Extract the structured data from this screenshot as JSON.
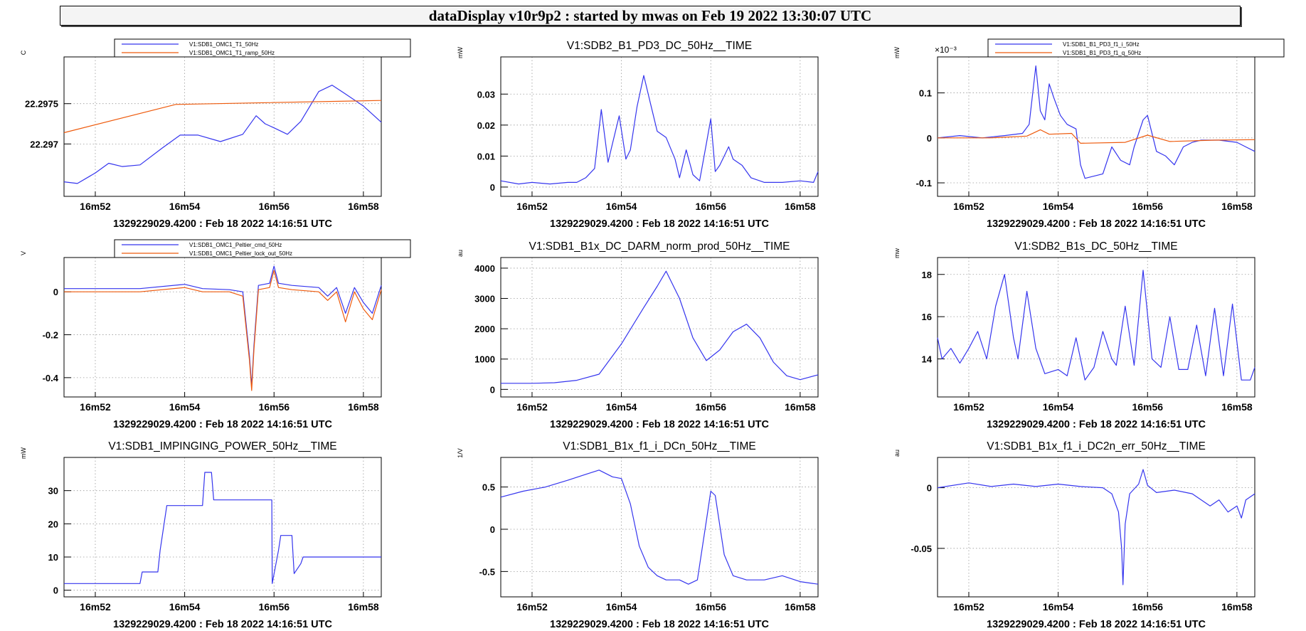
{
  "header": {
    "title": "dataDisplay v10r9p2 : started by mwas on Feb 19 2022 13:30:07 UTC"
  },
  "colors": {
    "blue": "#3535ee",
    "orange": "#ee5a0c",
    "grid": "#9a9a9a"
  },
  "x_axis": {
    "unit": "minutes",
    "tick_labels": [
      "16m52",
      "16m54",
      "16m56",
      "16m58"
    ],
    "tick_values": [
      52,
      54,
      56,
      58
    ],
    "range": [
      51.3,
      58.4
    ]
  },
  "chart_data": [
    {
      "type": "line",
      "title": "",
      "ylabel": "C",
      "time_label": "1329229029.4200 : Feb 18 2022 14:16:51 UTC",
      "ylim": [
        22.29635,
        22.29808
      ],
      "yticks": [
        {
          "v": 22.2975,
          "label": "22.2975"
        },
        {
          "v": 22.297,
          "label": "22.297"
        }
      ],
      "legend": [
        "V1:SDB1_OMC1_T1_50Hz",
        "V1:SDB1_OMC1_T1_ramp_50Hz"
      ],
      "series": [
        {
          "name": "V1:SDB1_OMC1_T1_50Hz",
          "color": "blue",
          "x": [
            51.3,
            51.6,
            52.0,
            52.3,
            52.6,
            53.0,
            53.5,
            53.9,
            54.3,
            54.8,
            55.3,
            55.6,
            55.8,
            56.0,
            56.3,
            56.6,
            57.0,
            57.3,
            57.6,
            58.0,
            58.4
          ],
          "y": [
            22.29653,
            22.29651,
            22.29664,
            22.29676,
            22.29672,
            22.29674,
            22.29695,
            22.29711,
            22.29711,
            22.29703,
            22.29712,
            22.29735,
            22.29725,
            22.2972,
            22.29712,
            22.29728,
            22.29765,
            22.29773,
            22.29762,
            22.29747,
            22.29727
          ]
        },
        {
          "name": "V1:SDB1_OMC1_T1_ramp_50Hz",
          "color": "orange",
          "x": [
            51.3,
            53.8,
            58.4
          ],
          "y": [
            22.29714,
            22.29749,
            22.29754
          ]
        }
      ]
    },
    {
      "type": "line",
      "title": "V1:SDB2_B1_PD3_DC_50Hz__TIME",
      "ylabel": "mW",
      "time_label": "1329229029.4200 : Feb 18 2022 14:16:51 UTC",
      "ylim": [
        -0.003,
        0.042
      ],
      "yticks": [
        {
          "v": 0,
          "label": "0"
        },
        {
          "v": 0.01,
          "label": "0.01"
        },
        {
          "v": 0.02,
          "label": "0.02"
        },
        {
          "v": 0.03,
          "label": "0.03"
        }
      ],
      "series": [
        {
          "name": "",
          "color": "blue",
          "x": [
            51.3,
            51.7,
            52.0,
            52.4,
            52.8,
            53.0,
            53.2,
            53.4,
            53.55,
            53.7,
            53.8,
            53.95,
            54.1,
            54.2,
            54.35,
            54.5,
            54.65,
            54.8,
            55.0,
            55.2,
            55.3,
            55.45,
            55.6,
            55.75,
            55.9,
            56.0,
            56.1,
            56.2,
            56.4,
            56.5,
            56.7,
            56.9,
            57.2,
            57.6,
            58.0,
            58.3,
            58.4
          ],
          "y": [
            0.002,
            0.001,
            0.0015,
            0.001,
            0.0015,
            0.0015,
            0.003,
            0.006,
            0.025,
            0.008,
            0.014,
            0.023,
            0.009,
            0.012,
            0.026,
            0.036,
            0.027,
            0.018,
            0.016,
            0.009,
            0.003,
            0.012,
            0.004,
            0.002,
            0.014,
            0.022,
            0.005,
            0.007,
            0.013,
            0.009,
            0.007,
            0.003,
            0.0015,
            0.0015,
            0.002,
            0.0015,
            0.005
          ]
        }
      ]
    },
    {
      "type": "line",
      "title": "",
      "ylabel": "mW",
      "yexp": "×10⁻³",
      "time_label": "1329229029.4200 : Feb 18 2022 14:16:51 UTC",
      "ylim": [
        -0.13,
        0.18
      ],
      "yticks": [
        {
          "v": -0.1,
          "label": "-0.1"
        },
        {
          "v": 0,
          "label": "0"
        },
        {
          "v": 0.1,
          "label": "0.1"
        }
      ],
      "legend": [
        "V1:SDB1_B1_PD3_f1_i_50Hz",
        "V1:SDB1_B1_PD3_f1_q_50Hz"
      ],
      "series": [
        {
          "name": "V1:SDB1_B1_PD3_f1_i_50Hz",
          "color": "blue",
          "x": [
            51.3,
            51.8,
            52.3,
            52.8,
            53.2,
            53.35,
            53.5,
            53.6,
            53.7,
            53.8,
            53.9,
            54.05,
            54.2,
            54.4,
            54.5,
            54.6,
            55.0,
            55.2,
            55.4,
            55.6,
            55.7,
            55.9,
            56.0,
            56.2,
            56.4,
            56.6,
            56.8,
            57.0,
            57.2,
            57.6,
            58.0,
            58.2,
            58.4
          ],
          "y": [
            0,
            0.005,
            0,
            0.005,
            0.01,
            0.03,
            0.16,
            0.06,
            0.04,
            0.12,
            0.09,
            0.05,
            0.03,
            0.02,
            -0.06,
            -0.09,
            -0.08,
            -0.02,
            -0.05,
            -0.06,
            -0.02,
            0.04,
            0.05,
            -0.03,
            -0.04,
            -0.06,
            -0.02,
            -0.01,
            -0.005,
            -0.005,
            -0.01,
            -0.02,
            -0.03
          ]
        },
        {
          "name": "V1:SDB1_B1_PD3_f1_q_50Hz",
          "color": "orange",
          "x": [
            51.3,
            52.5,
            53.3,
            53.6,
            53.8,
            54.3,
            54.5,
            55.5,
            56.0,
            56.5,
            57.5,
            58.4
          ],
          "y": [
            0,
            0,
            0.004,
            0.018,
            0.008,
            0.01,
            -0.012,
            -0.01,
            0.006,
            -0.008,
            -0.005,
            -0.004
          ]
        }
      ]
    },
    {
      "type": "line",
      "title": "",
      "ylabel": "V",
      "time_label": "1329229029.4200 : Feb 18 2022 14:16:51 UTC",
      "ylim": [
        -0.49,
        0.16
      ],
      "yticks": [
        {
          "v": -0.4,
          "label": "-0.4"
        },
        {
          "v": -0.2,
          "label": "-0.2"
        },
        {
          "v": 0,
          "label": "0"
        }
      ],
      "legend": [
        "V1:SDB1_OMC1_Peltier_cmd_50Hz",
        "V1:SDB1_OMC1_Peltier_lock_out_50Hz"
      ],
      "series": [
        {
          "name": "V1:SDB1_OMC1_Peltier_cmd_50Hz",
          "color": "blue",
          "x": [
            51.3,
            53.0,
            54.0,
            54.4,
            55.0,
            55.3,
            55.45,
            55.5,
            55.55,
            55.65,
            55.9,
            56.0,
            56.1,
            56.4,
            57.0,
            57.2,
            57.4,
            57.6,
            57.8,
            58.0,
            58.2,
            58.4
          ],
          "y": [
            0.015,
            0.015,
            0.035,
            0.015,
            0.01,
            0,
            -0.3,
            -0.44,
            -0.25,
            0.03,
            0.04,
            0.12,
            0.04,
            0.03,
            0.02,
            -0.02,
            0.02,
            -0.1,
            0.02,
            -0.05,
            -0.1,
            0.03
          ]
        },
        {
          "name": "V1:SDB1_OMC1_Peltier_lock_out_50Hz",
          "color": "orange",
          "x": [
            51.3,
            53.0,
            54.0,
            54.4,
            55.0,
            55.3,
            55.45,
            55.5,
            55.55,
            55.65,
            55.9,
            56.0,
            56.1,
            56.4,
            57.0,
            57.2,
            57.4,
            57.6,
            57.8,
            58.0,
            58.2,
            58.4
          ],
          "y": [
            0,
            0,
            0.02,
            0,
            0,
            -0.02,
            -0.32,
            -0.46,
            -0.27,
            0.01,
            0.02,
            0.1,
            0.02,
            0.01,
            0,
            -0.04,
            0,
            -0.14,
            0,
            -0.08,
            -0.13,
            0.01
          ]
        }
      ]
    },
    {
      "type": "line",
      "title": "V1:SDB1_B1x_DC_DARM_norm_prod_50Hz__TIME",
      "ylabel": "au",
      "time_label": "1329229029.4200 : Feb 18 2022 14:16:51 UTC",
      "ylim": [
        -250,
        4350
      ],
      "yticks": [
        {
          "v": 0,
          "label": "0"
        },
        {
          "v": 1000,
          "label": "1000"
        },
        {
          "v": 2000,
          "label": "2000"
        },
        {
          "v": 3000,
          "label": "3000"
        },
        {
          "v": 4000,
          "label": "4000"
        }
      ],
      "series": [
        {
          "name": "",
          "color": "blue",
          "x": [
            51.3,
            52.0,
            52.5,
            53.0,
            53.5,
            54.0,
            54.5,
            54.8,
            55.0,
            55.3,
            55.6,
            55.9,
            56.2,
            56.5,
            56.8,
            57.1,
            57.4,
            57.7,
            58.0,
            58.4
          ],
          "y": [
            200,
            200,
            220,
            300,
            500,
            1500,
            2700,
            3400,
            3900,
            3000,
            1700,
            950,
            1300,
            1900,
            2150,
            1700,
            900,
            450,
            320,
            480
          ]
        }
      ]
    },
    {
      "type": "line",
      "title": "V1:SDB2_B1s_DC_50Hz__TIME",
      "ylabel": "mw",
      "time_label": "1329229029.4200 : Feb 18 2022 14:16:51 UTC",
      "ylim": [
        12.2,
        18.8
      ],
      "yticks": [
        {
          "v": 14,
          "label": "14"
        },
        {
          "v": 16,
          "label": "16"
        },
        {
          "v": 18,
          "label": "18"
        }
      ],
      "series": [
        {
          "name": "",
          "color": "blue",
          "x": [
            51.3,
            51.4,
            51.6,
            51.8,
            52.0,
            52.2,
            52.4,
            52.6,
            52.8,
            53.0,
            53.1,
            53.3,
            53.5,
            53.7,
            54.0,
            54.2,
            54.4,
            54.6,
            54.8,
            55.0,
            55.2,
            55.3,
            55.5,
            55.7,
            55.9,
            56.1,
            56.3,
            56.5,
            56.7,
            56.9,
            57.1,
            57.3,
            57.5,
            57.7,
            57.9,
            58.1,
            58.3,
            58.4
          ],
          "y": [
            15,
            14,
            14.5,
            13.8,
            14.5,
            15.3,
            14,
            16.5,
            18,
            15,
            14,
            17.2,
            14.5,
            13.3,
            13.5,
            13.2,
            15,
            13,
            13.6,
            15.3,
            14,
            13.7,
            16.5,
            13.7,
            18.2,
            14,
            13.6,
            16,
            13.5,
            13.5,
            15.6,
            13.2,
            16.4,
            13.2,
            16.6,
            13,
            13,
            13.6
          ]
        }
      ]
    },
    {
      "type": "line",
      "title": "V1:SDB1_IMPINGING_POWER_50Hz__TIME",
      "ylabel": "mW",
      "time_label": "1329229029.4200 : Feb 18 2022 14:16:51 UTC",
      "ylim": [
        -2,
        40
      ],
      "yticks": [
        {
          "v": 0,
          "label": "0"
        },
        {
          "v": 10,
          "label": "10"
        },
        {
          "v": 20,
          "label": "20"
        },
        {
          "v": 30,
          "label": "30"
        }
      ],
      "series": [
        {
          "name": "",
          "color": "blue",
          "x": [
            51.3,
            53.0,
            53.05,
            53.4,
            53.45,
            53.6,
            53.65,
            54.4,
            54.45,
            54.6,
            54.65,
            55.95,
            55.96,
            56.1,
            56.15,
            56.4,
            56.45,
            56.6,
            56.65,
            58.4
          ],
          "y": [
            2,
            2,
            5.5,
            5.5,
            12,
            25.5,
            25.5,
            25.5,
            35.5,
            35.5,
            27.2,
            27.2,
            2,
            12,
            16.5,
            16.5,
            5,
            8,
            10,
            10
          ]
        }
      ]
    },
    {
      "type": "line",
      "title": "V1:SDB1_B1x_f1_i_DCn_50Hz__TIME",
      "ylabel": "1/V",
      "time_label": "1329229029.4200 : Feb 18 2022 14:16:51 UTC",
      "ylim": [
        -0.8,
        0.85
      ],
      "yticks": [
        {
          "v": -0.5,
          "label": "-0.5"
        },
        {
          "v": 0,
          "label": "0"
        },
        {
          "v": 0.5,
          "label": "0.5"
        }
      ],
      "series": [
        {
          "name": "",
          "color": "blue",
          "x": [
            51.3,
            51.8,
            52.3,
            52.8,
            53.2,
            53.5,
            53.8,
            54.0,
            54.2,
            54.4,
            54.6,
            54.8,
            55.0,
            55.3,
            55.5,
            55.7,
            55.9,
            56.0,
            56.1,
            56.3,
            56.5,
            56.8,
            57.2,
            57.6,
            58.0,
            58.4
          ],
          "y": [
            0.38,
            0.45,
            0.5,
            0.58,
            0.65,
            0.7,
            0.62,
            0.6,
            0.3,
            -0.2,
            -0.45,
            -0.55,
            -0.6,
            -0.6,
            -0.65,
            -0.6,
            0.1,
            0.45,
            0.4,
            -0.3,
            -0.55,
            -0.6,
            -0.6,
            -0.55,
            -0.62,
            -0.65
          ]
        }
      ]
    },
    {
      "type": "line",
      "title": "V1:SDB1_B1x_f1_i_DC2n_err_50Hz__TIME",
      "ylabel": "au",
      "time_label": "1329229029.4200 : Feb 18 2022 14:16:51 UTC",
      "ylim": [
        -0.09,
        0.025
      ],
      "yticks": [
        {
          "v": -0.05,
          "label": "-0.05"
        },
        {
          "v": 0,
          "label": "0"
        }
      ],
      "series": [
        {
          "name": "",
          "color": "blue",
          "x": [
            51.3,
            52.0,
            52.5,
            53.0,
            53.5,
            54.0,
            54.5,
            55.0,
            55.2,
            55.35,
            55.42,
            55.45,
            55.5,
            55.6,
            55.8,
            55.9,
            56.0,
            56.2,
            56.6,
            57.0,
            57.4,
            57.6,
            57.8,
            58.0,
            58.1,
            58.2,
            58.4
          ],
          "y": [
            0,
            0.004,
            0.001,
            0.003,
            0.001,
            0.003,
            0.001,
            0,
            -0.005,
            -0.02,
            -0.05,
            -0.08,
            -0.03,
            -0.005,
            0.003,
            0.015,
            0.002,
            -0.004,
            -0.002,
            -0.005,
            -0.015,
            -0.01,
            -0.02,
            -0.015,
            -0.025,
            -0.01,
            -0.005
          ]
        }
      ]
    }
  ]
}
